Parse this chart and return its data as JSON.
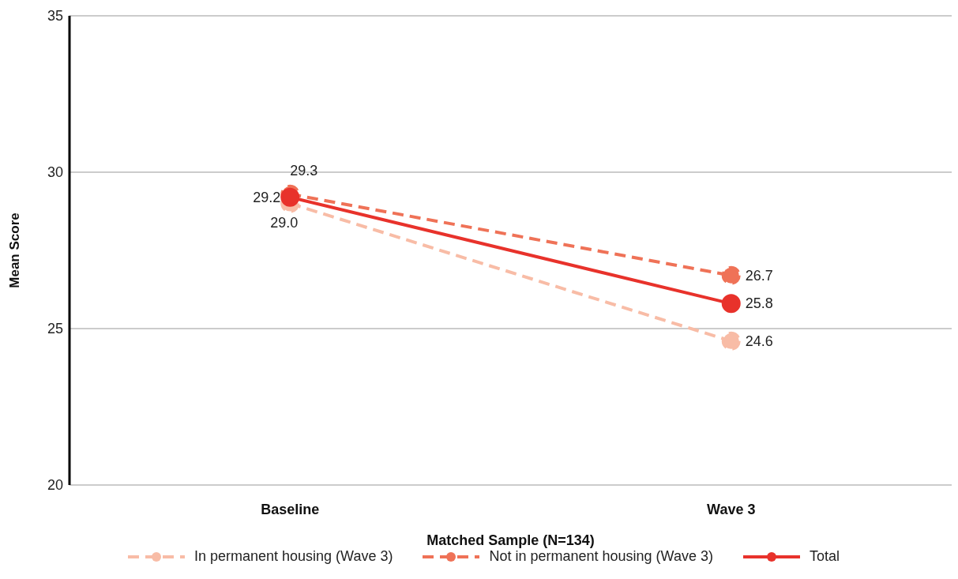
{
  "chart_data": {
    "type": "line",
    "xlabel": "Matched Sample (N=134)",
    "ylabel": "Mean Score",
    "categories": [
      "Baseline",
      "Wave 3"
    ],
    "series": [
      {
        "name": "In permanent housing (Wave 3)",
        "color": "#f8bca6",
        "values": [
          29.0,
          24.6
        ],
        "value_labels": [
          "29.0",
          "24.6"
        ],
        "line_style": "dashed"
      },
      {
        "name": "Not in permanent housing (Wave 3)",
        "color": "#ef7257",
        "values": [
          29.3,
          26.7
        ],
        "value_labels": [
          "29.3",
          "26.7"
        ],
        "line_style": "dashed"
      },
      {
        "name": "Total",
        "color": "#e8322b",
        "values": [
          29.2,
          25.8
        ],
        "value_labels": [
          "29.2",
          "25.8"
        ],
        "line_style": "solid"
      }
    ],
    "ylim": [
      20,
      35
    ],
    "yticks": [
      20,
      25,
      30,
      35
    ],
    "grid": "y",
    "legend": "bottom",
    "marker": "circle"
  }
}
